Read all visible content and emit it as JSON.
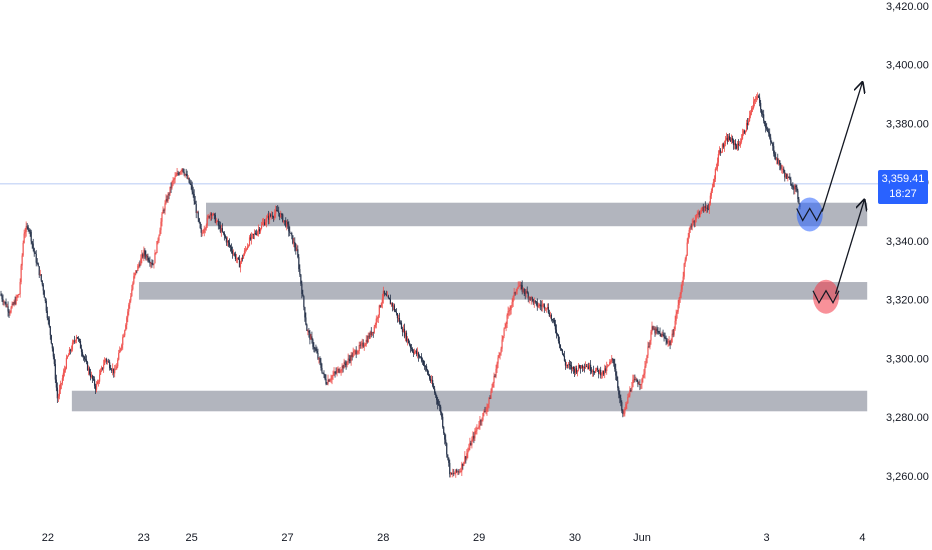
{
  "chart_data": {
    "type": "candlestick",
    "title": "",
    "y_ticks": [
      "3,260.00",
      "3,280.00",
      "3,300.00",
      "3,320.00",
      "3,340.00",
      "3,360.00",
      "3,380.00",
      "3,400.00",
      "3,420.00"
    ],
    "y_tick_values": [
      3260,
      3280,
      3300,
      3320,
      3340,
      3360,
      3380,
      3400,
      3420
    ],
    "ylim": [
      3245,
      3422
    ],
    "x_ticks": [
      "22",
      "23",
      "25",
      "27",
      "28",
      "29",
      "30",
      "Jun",
      "3",
      "4"
    ],
    "x_tick_positions": [
      0.5,
      1.5,
      2.0,
      3.0,
      4.0,
      5.0,
      6.0,
      6.7,
      8.0,
      9.0
    ],
    "xlim": [
      0,
      9.1
    ],
    "current_price": {
      "value": 3359.41,
      "label": "3,359.41",
      "countdown": "18:27"
    },
    "price_path": [
      [
        0.0,
        3322
      ],
      [
        0.1,
        3316
      ],
      [
        0.2,
        3322
      ],
      [
        0.25,
        3343
      ],
      [
        0.3,
        3345
      ],
      [
        0.35,
        3337
      ],
      [
        0.45,
        3324
      ],
      [
        0.55,
        3303
      ],
      [
        0.6,
        3286
      ],
      [
        0.7,
        3300
      ],
      [
        0.8,
        3308
      ],
      [
        0.9,
        3298
      ],
      [
        1.0,
        3290
      ],
      [
        1.1,
        3300
      ],
      [
        1.2,
        3295
      ],
      [
        1.3,
        3310
      ],
      [
        1.4,
        3328
      ],
      [
        1.5,
        3336
      ],
      [
        1.6,
        3332
      ],
      [
        1.7,
        3350
      ],
      [
        1.8,
        3360
      ],
      [
        1.9,
        3365
      ],
      [
        2.0,
        3358
      ],
      [
        2.1,
        3342
      ],
      [
        2.2,
        3350
      ],
      [
        2.3,
        3344
      ],
      [
        2.4,
        3338
      ],
      [
        2.5,
        3332
      ],
      [
        2.6,
        3340
      ],
      [
        2.7,
        3344
      ],
      [
        2.8,
        3348
      ],
      [
        2.9,
        3350
      ],
      [
        3.0,
        3345
      ],
      [
        3.1,
        3336
      ],
      [
        3.2,
        3310
      ],
      [
        3.3,
        3302
      ],
      [
        3.4,
        3292
      ],
      [
        3.5,
        3295
      ],
      [
        3.6,
        3298
      ],
      [
        3.7,
        3302
      ],
      [
        3.8,
        3305
      ],
      [
        3.9,
        3310
      ],
      [
        4.0,
        3322
      ],
      [
        4.1,
        3318
      ],
      [
        4.2,
        3310
      ],
      [
        4.3,
        3303
      ],
      [
        4.4,
        3300
      ],
      [
        4.5,
        3292
      ],
      [
        4.6,
        3282
      ],
      [
        4.7,
        3260
      ],
      [
        4.8,
        3262
      ],
      [
        4.9,
        3270
      ],
      [
        5.0,
        3278
      ],
      [
        5.1,
        3285
      ],
      [
        5.2,
        3300
      ],
      [
        5.3,
        3315
      ],
      [
        5.4,
        3325
      ],
      [
        5.5,
        3322
      ],
      [
        5.6,
        3318
      ],
      [
        5.7,
        3318
      ],
      [
        5.8,
        3310
      ],
      [
        5.9,
        3298
      ],
      [
        6.0,
        3296
      ],
      [
        6.1,
        3298
      ],
      [
        6.2,
        3296
      ],
      [
        6.3,
        3295
      ],
      [
        6.4,
        3300
      ],
      [
        6.5,
        3280
      ],
      [
        6.6,
        3292
      ],
      [
        6.7,
        3292
      ],
      [
        6.8,
        3310
      ],
      [
        6.9,
        3308
      ],
      [
        7.0,
        3305
      ],
      [
        7.1,
        3322
      ],
      [
        7.2,
        3345
      ],
      [
        7.3,
        3350
      ],
      [
        7.4,
        3352
      ],
      [
        7.5,
        3370
      ],
      [
        7.6,
        3375
      ],
      [
        7.7,
        3372
      ],
      [
        7.8,
        3380
      ],
      [
        7.9,
        3390
      ],
      [
        8.0,
        3378
      ],
      [
        8.1,
        3368
      ],
      [
        8.2,
        3362
      ],
      [
        8.3,
        3358
      ],
      [
        8.35,
        3352
      ]
    ],
    "zones": [
      {
        "low": 3345,
        "high": 3353,
        "x_start": 2.15,
        "x_end": 9.05
      },
      {
        "low": 3320,
        "high": 3326,
        "x_start": 1.45,
        "x_end": 9.05
      },
      {
        "low": 3282,
        "high": 3289,
        "x_start": 0.75,
        "x_end": 9.05
      }
    ],
    "annotations": [
      {
        "type": "circle",
        "x": 8.45,
        "y": 3349,
        "color": "#2962ff"
      },
      {
        "type": "circle",
        "x": 8.62,
        "y": 3321,
        "color": "#f23645"
      },
      {
        "type": "arrow",
        "from": [
          8.58,
          3350
        ],
        "to": [
          9.0,
          3394
        ]
      },
      {
        "type": "arrow",
        "from": [
          8.72,
          3322
        ],
        "to": [
          9.02,
          3354
        ]
      }
    ],
    "colors": {
      "up": "#ef5350",
      "down": "#26324a",
      "zone": "#b2b5be",
      "price_line": "#9fb8f0",
      "arrow": "#131722"
    }
  }
}
